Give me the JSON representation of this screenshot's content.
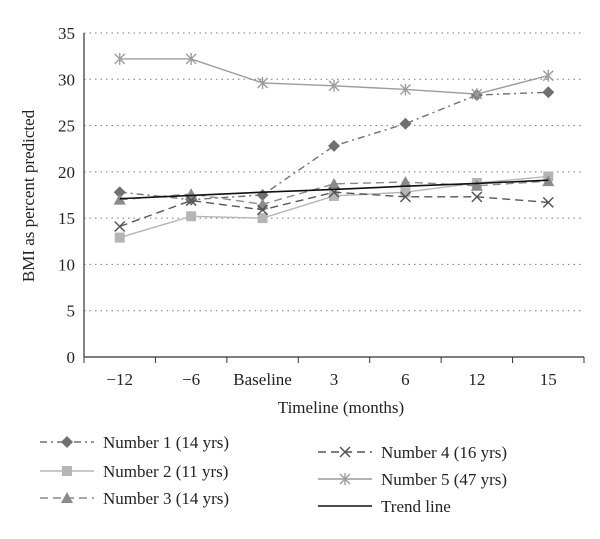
{
  "chart_data": {
    "type": "line",
    "categories": [
      "−12",
      "−6",
      "Baseline",
      "3",
      "6",
      "12",
      "15"
    ],
    "xlabel": "Timeline (months)",
    "ylabel": "BMI as percent predicted",
    "ylim": [
      0,
      35
    ],
    "yticks": [
      "0",
      "5",
      "10",
      "15",
      "20",
      "25",
      "30",
      "35"
    ],
    "grid": "horizontal dotted",
    "legend_position": "bottom",
    "series": [
      {
        "name": "Number 1 (14 yrs)",
        "values": [
          17.8,
          17.0,
          17.5,
          22.8,
          25.2,
          28.3,
          28.6
        ],
        "color": "#707070",
        "marker": "diamond",
        "dash": "dashdot"
      },
      {
        "name": "Number 2 (11 yrs)",
        "values": [
          12.9,
          15.2,
          15.0,
          17.4,
          17.8,
          18.8,
          19.5
        ],
        "color": "#b5b5b5",
        "marker": "square",
        "dash": "solid"
      },
      {
        "name": "Number 3 (14 yrs)",
        "values": [
          17.0,
          17.6,
          16.5,
          18.7,
          18.9,
          18.5,
          19.0
        ],
        "color": "#8a8a8a",
        "marker": "triangle",
        "dash": "dash"
      },
      {
        "name": "Number 4 (16 yrs)",
        "values": [
          14.1,
          16.9,
          15.9,
          17.8,
          17.3,
          17.3,
          16.7
        ],
        "color": "#555555",
        "marker": "x",
        "dash": "dash"
      },
      {
        "name": "Number 5 (47 yrs)",
        "values": [
          32.2,
          32.2,
          29.6,
          29.3,
          28.9,
          28.4,
          30.4
        ],
        "color": "#9c9c9c",
        "marker": "star",
        "dash": "solid"
      },
      {
        "name": "Trend line",
        "values": [
          17.1,
          17.45,
          17.8,
          18.1,
          18.45,
          18.75,
          19.1
        ],
        "color": "#111111",
        "marker": "none",
        "dash": "solid"
      }
    ]
  },
  "legend": {
    "col1": [
      "Number 1 (14 yrs)",
      "Number 2 (11 yrs)",
      "Number 3 (14 yrs)"
    ],
    "col2": [
      "Number 4 (16 yrs)",
      "Number 5 (47 yrs)",
      "Trend line"
    ]
  }
}
